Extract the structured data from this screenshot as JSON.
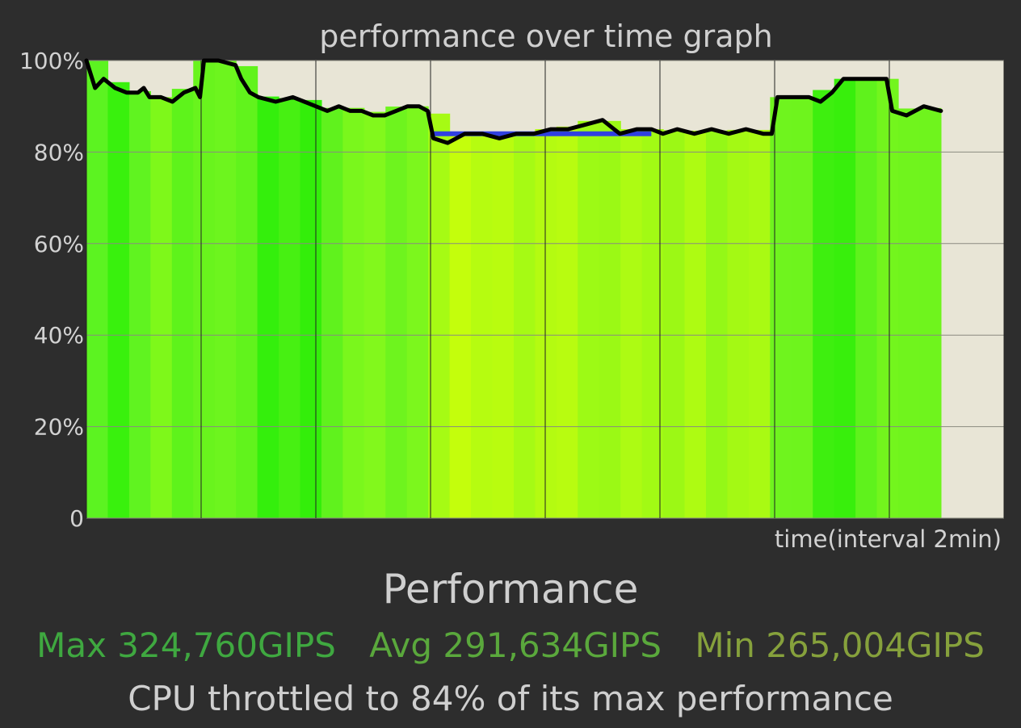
{
  "chart_data": {
    "type": "area",
    "title": "performance over time graph",
    "xlabel": "time(interval 2min)",
    "ylabel": "",
    "yticks": [
      "0",
      "20%",
      "40%",
      "60%",
      "80%",
      "100%"
    ],
    "ylim": [
      0,
      100
    ],
    "xlim": [
      0,
      16
    ],
    "x_grid_interval": 2,
    "grid": true,
    "series": [
      {
        "x": [
          0,
          0.15,
          0.3,
          0.5,
          0.7,
          0.9,
          1.0,
          1.1,
          1.3,
          1.5,
          1.7,
          1.9,
          1.98,
          2.05,
          2.3,
          2.6,
          2.7,
          2.85,
          3.0,
          3.3,
          3.6,
          3.8,
          4.0,
          4.2,
          4.4,
          4.6,
          4.8,
          5.0,
          5.2,
          5.4,
          5.6,
          5.8,
          5.95,
          6.05,
          6.3,
          6.6,
          6.9,
          7.2,
          7.5,
          7.8,
          8.1,
          8.4,
          8.7,
          9.0,
          9.3,
          9.6,
          9.85,
          10.05,
          10.3,
          10.6,
          10.9,
          11.2,
          11.5,
          11.8,
          11.95,
          12.05,
          12.3,
          12.6,
          12.8,
          13.0,
          13.2,
          13.4,
          13.6,
          13.8,
          13.95,
          14.05,
          14.3,
          14.6,
          14.9
        ],
        "y": [
          100,
          94,
          96,
          94,
          93,
          93,
          94,
          92,
          92,
          91,
          93,
          94,
          92,
          100,
          100,
          99,
          96,
          93,
          92,
          91,
          92,
          91,
          90,
          89,
          90,
          89,
          89,
          88,
          88,
          89,
          90,
          90,
          89,
          83,
          82,
          84,
          84,
          83,
          84,
          84,
          85,
          85,
          86,
          87,
          84,
          85,
          85,
          84,
          85,
          84,
          85,
          84,
          85,
          84,
          84,
          92,
          92,
          92,
          91,
          93,
          96,
          96,
          96,
          96,
          96,
          89,
          88,
          90,
          89
        ]
      }
    ],
    "throttle_band": {
      "x": [
        6.0,
        9.85
      ],
      "y": 84
    },
    "bar_colors": [
      "#5cf321",
      "#39f10d",
      "#60f320",
      "#7ef81a",
      "#5ef31b",
      "#69f41d",
      "#6df51e",
      "#61f31c",
      "#34ef0c",
      "#47f012",
      "#33ee0a",
      "#60f21d",
      "#7af71c",
      "#82f81c",
      "#6ef41e",
      "#7cf71d",
      "#a6fb14",
      "#c4fe0c",
      "#b6fc10",
      "#b9fc0f",
      "#a6fa14",
      "#b4fb11",
      "#b8fc10",
      "#9dfa15",
      "#9bf915",
      "#adfb13",
      "#a2fa14",
      "#9cf815",
      "#aefb12",
      "#94f817",
      "#a4f914",
      "#a9fa13",
      "#6ff41e",
      "#6ef41d",
      "#3eef0f",
      "#38ef0c",
      "#5ff21c",
      "#73f51d",
      "#70f41d",
      "#6ff41d"
    ],
    "colors": {
      "plot_bg": "#e8e5d6",
      "line": "#000000",
      "throttle": "#3040e0",
      "grid": "#8a8a80"
    }
  },
  "summary": {
    "title": "Performance",
    "max": "Max 324,760GIPS",
    "avg": "Avg 291,634GIPS",
    "min": "Min 265,004GIPS",
    "throttle_message": "CPU throttled to 84% of its max performance"
  }
}
